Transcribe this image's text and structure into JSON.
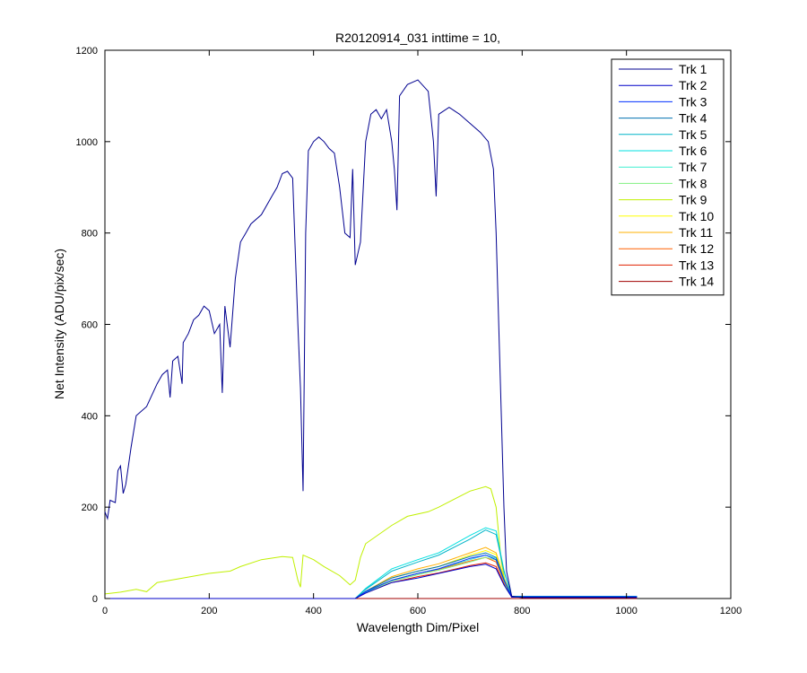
{
  "chart_data": {
    "type": "line",
    "title": "R20120914_031 inttime = 10,",
    "xlabel": "Wavelength Dim/Pixel",
    "ylabel": "Net Intensity (ADU/pix/sec)",
    "xlim": [
      0,
      1200
    ],
    "ylim": [
      0,
      1200
    ],
    "xticks": [
      0,
      200,
      400,
      600,
      800,
      1000,
      1200
    ],
    "yticks": [
      0,
      200,
      400,
      600,
      800,
      1000,
      1200
    ],
    "legend_position": "top-right",
    "grid": false,
    "series": [
      {
        "name": "Trk 1",
        "color": "#00008F",
        "points": [
          [
            0,
            190
          ],
          [
            5,
            175
          ],
          [
            10,
            215
          ],
          [
            20,
            210
          ],
          [
            25,
            280
          ],
          [
            30,
            290
          ],
          [
            35,
            230
          ],
          [
            40,
            250
          ],
          [
            50,
            330
          ],
          [
            60,
            400
          ],
          [
            80,
            420
          ],
          [
            100,
            470
          ],
          [
            110,
            490
          ],
          [
            120,
            500
          ],
          [
            125,
            440
          ],
          [
            130,
            520
          ],
          [
            140,
            530
          ],
          [
            148,
            470
          ],
          [
            150,
            560
          ],
          [
            160,
            580
          ],
          [
            170,
            610
          ],
          [
            180,
            620
          ],
          [
            190,
            640
          ],
          [
            200,
            630
          ],
          [
            210,
            580
          ],
          [
            220,
            600
          ],
          [
            225,
            450
          ],
          [
            230,
            640
          ],
          [
            240,
            550
          ],
          [
            250,
            700
          ],
          [
            260,
            780
          ],
          [
            270,
            800
          ],
          [
            280,
            820
          ],
          [
            300,
            840
          ],
          [
            320,
            880
          ],
          [
            330,
            900
          ],
          [
            340,
            930
          ],
          [
            350,
            935
          ],
          [
            360,
            920
          ],
          [
            370,
            600
          ],
          [
            375,
            460
          ],
          [
            380,
            235
          ],
          [
            385,
            800
          ],
          [
            390,
            980
          ],
          [
            400,
            1000
          ],
          [
            410,
            1010
          ],
          [
            420,
            1000
          ],
          [
            430,
            985
          ],
          [
            440,
            975
          ],
          [
            450,
            900
          ],
          [
            460,
            800
          ],
          [
            470,
            790
          ],
          [
            475,
            940
          ],
          [
            480,
            730
          ],
          [
            490,
            780
          ],
          [
            500,
            1000
          ],
          [
            510,
            1060
          ],
          [
            520,
            1070
          ],
          [
            530,
            1050
          ],
          [
            540,
            1070
          ],
          [
            550,
            1000
          ],
          [
            555,
            940
          ],
          [
            560,
            850
          ],
          [
            565,
            1100
          ],
          [
            580,
            1125
          ],
          [
            600,
            1135
          ],
          [
            620,
            1110
          ],
          [
            630,
            1000
          ],
          [
            635,
            880
          ],
          [
            640,
            1060
          ],
          [
            660,
            1075
          ],
          [
            680,
            1060
          ],
          [
            700,
            1040
          ],
          [
            720,
            1020
          ],
          [
            735,
            1000
          ],
          [
            745,
            940
          ],
          [
            750,
            800
          ],
          [
            760,
            400
          ],
          [
            765,
            200
          ],
          [
            770,
            60
          ],
          [
            780,
            5
          ],
          [
            800,
            2
          ],
          [
            1000,
            2
          ],
          [
            1020,
            2
          ]
        ]
      },
      {
        "name": "Trk 2",
        "color": "#0000C8",
        "points": [
          [
            0,
            0
          ],
          [
            480,
            0
          ],
          [
            500,
            12
          ],
          [
            550,
            35
          ],
          [
            600,
            45
          ],
          [
            640,
            55
          ],
          [
            700,
            70
          ],
          [
            730,
            75
          ],
          [
            750,
            65
          ],
          [
            765,
            30
          ],
          [
            780,
            3
          ],
          [
            1020,
            3
          ]
        ]
      },
      {
        "name": "Trk 3",
        "color": "#0030FF",
        "points": [
          [
            0,
            0
          ],
          [
            480,
            0
          ],
          [
            500,
            15
          ],
          [
            550,
            40
          ],
          [
            600,
            55
          ],
          [
            640,
            65
          ],
          [
            700,
            88
          ],
          [
            730,
            95
          ],
          [
            750,
            85
          ],
          [
            765,
            40
          ],
          [
            780,
            4
          ],
          [
            1020,
            4
          ]
        ]
      },
      {
        "name": "Trk 4",
        "color": "#0070B0",
        "points": [
          [
            0,
            0
          ],
          [
            480,
            0
          ],
          [
            500,
            16
          ],
          [
            550,
            45
          ],
          [
            600,
            60
          ],
          [
            640,
            70
          ],
          [
            700,
            92
          ],
          [
            730,
            100
          ],
          [
            750,
            90
          ],
          [
            765,
            42
          ],
          [
            780,
            4
          ],
          [
            1020,
            4
          ]
        ]
      },
      {
        "name": "Trk 5",
        "color": "#00B4C8",
        "points": [
          [
            0,
            0
          ],
          [
            480,
            0
          ],
          [
            500,
            20
          ],
          [
            550,
            60
          ],
          [
            600,
            80
          ],
          [
            640,
            95
          ],
          [
            700,
            130
          ],
          [
            730,
            150
          ],
          [
            750,
            140
          ],
          [
            765,
            60
          ],
          [
            780,
            5
          ],
          [
            1020,
            5
          ]
        ]
      },
      {
        "name": "Trk 6",
        "color": "#00E0E0",
        "points": [
          [
            0,
            0
          ],
          [
            480,
            0
          ],
          [
            500,
            22
          ],
          [
            550,
            65
          ],
          [
            600,
            85
          ],
          [
            640,
            100
          ],
          [
            700,
            138
          ],
          [
            730,
            155
          ],
          [
            750,
            148
          ],
          [
            765,
            62
          ],
          [
            780,
            5
          ],
          [
            1020,
            5
          ]
        ]
      },
      {
        "name": "Trk 7",
        "color": "#40F0D0",
        "points": [
          [
            0,
            0
          ],
          [
            480,
            0
          ],
          [
            500,
            14
          ],
          [
            550,
            40
          ],
          [
            600,
            55
          ],
          [
            640,
            65
          ],
          [
            700,
            85
          ],
          [
            730,
            95
          ],
          [
            750,
            88
          ],
          [
            765,
            40
          ],
          [
            780,
            4
          ],
          [
            1020,
            4
          ]
        ]
      },
      {
        "name": "Trk 8",
        "color": "#80F080",
        "points": [
          [
            0,
            0
          ],
          [
            480,
            0
          ],
          [
            500,
            13
          ],
          [
            550,
            38
          ],
          [
            600,
            52
          ],
          [
            640,
            62
          ],
          [
            700,
            80
          ],
          [
            730,
            90
          ],
          [
            750,
            84
          ],
          [
            765,
            38
          ],
          [
            780,
            4
          ],
          [
            1020,
            4
          ]
        ]
      },
      {
        "name": "Trk 9",
        "color": "#C0F000",
        "points": [
          [
            0,
            10
          ],
          [
            30,
            14
          ],
          [
            60,
            20
          ],
          [
            80,
            15
          ],
          [
            100,
            35
          ],
          [
            150,
            45
          ],
          [
            200,
            55
          ],
          [
            240,
            60
          ],
          [
            260,
            70
          ],
          [
            300,
            85
          ],
          [
            340,
            92
          ],
          [
            360,
            90
          ],
          [
            370,
            40
          ],
          [
            375,
            25
          ],
          [
            380,
            95
          ],
          [
            400,
            85
          ],
          [
            420,
            70
          ],
          [
            450,
            50
          ],
          [
            470,
            30
          ],
          [
            480,
            40
          ],
          [
            490,
            90
          ],
          [
            500,
            120
          ],
          [
            550,
            160
          ],
          [
            580,
            180
          ],
          [
            620,
            190
          ],
          [
            640,
            200
          ],
          [
            700,
            235
          ],
          [
            730,
            245
          ],
          [
            740,
            240
          ],
          [
            750,
            200
          ],
          [
            760,
            80
          ],
          [
            770,
            20
          ],
          [
            780,
            5
          ],
          [
            1020,
            5
          ]
        ]
      },
      {
        "name": "Trk 10",
        "color": "#FFFF00",
        "points": [
          [
            0,
            0
          ],
          [
            480,
            0
          ],
          [
            500,
            15
          ],
          [
            550,
            45
          ],
          [
            600,
            60
          ],
          [
            640,
            70
          ],
          [
            700,
            95
          ],
          [
            730,
            105
          ],
          [
            750,
            96
          ],
          [
            765,
            44
          ],
          [
            780,
            4
          ],
          [
            1020,
            4
          ]
        ]
      },
      {
        "name": "Trk 11",
        "color": "#FFB000",
        "points": [
          [
            0,
            0
          ],
          [
            480,
            0
          ],
          [
            500,
            16
          ],
          [
            550,
            48
          ],
          [
            600,
            65
          ],
          [
            640,
            76
          ],
          [
            700,
            100
          ],
          [
            730,
            112
          ],
          [
            750,
            100
          ],
          [
            765,
            46
          ],
          [
            780,
            4
          ],
          [
            1020,
            4
          ]
        ]
      },
      {
        "name": "Trk 12",
        "color": "#FF6000",
        "points": [
          [
            0,
            0
          ],
          [
            480,
            0
          ],
          [
            500,
            14
          ],
          [
            550,
            40
          ],
          [
            600,
            55
          ],
          [
            640,
            64
          ],
          [
            700,
            82
          ],
          [
            730,
            90
          ],
          [
            750,
            80
          ],
          [
            765,
            36
          ],
          [
            780,
            3
          ],
          [
            1020,
            3
          ]
        ]
      },
      {
        "name": "Trk 13",
        "color": "#E02000",
        "points": [
          [
            0,
            0
          ],
          [
            480,
            0
          ],
          [
            500,
            12
          ],
          [
            550,
            35
          ],
          [
            600,
            48
          ],
          [
            640,
            56
          ],
          [
            700,
            72
          ],
          [
            730,
            78
          ],
          [
            750,
            70
          ],
          [
            765,
            32
          ],
          [
            780,
            3
          ],
          [
            1020,
            3
          ]
        ]
      },
      {
        "name": "Trk 14",
        "color": "#A00000",
        "points": [
          [
            0,
            0
          ],
          [
            1020,
            0
          ]
        ]
      }
    ]
  }
}
